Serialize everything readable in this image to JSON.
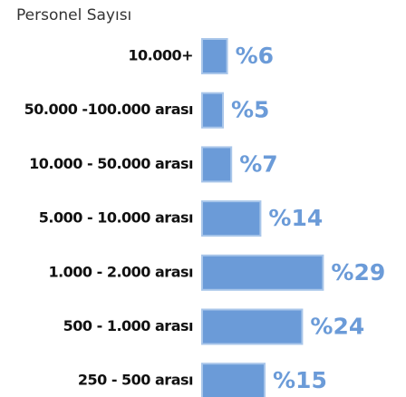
{
  "chart_data": {
    "type": "bar",
    "orientation": "horizontal",
    "title": "Personel Sayısı",
    "categories": [
      "10.000+",
      "50.000 -100.000 arası",
      "10.000 - 50.000 arası",
      "5.000 - 10.000 arası",
      "1.000 - 2.000 arası",
      "500 - 1.000 arası",
      "250 - 500 arası"
    ],
    "values": [
      6,
      5,
      7,
      14,
      29,
      24,
      15
    ],
    "value_labels": [
      "%6",
      "%5",
      "%7",
      "%14",
      "%29",
      "%24",
      "%15"
    ],
    "color": "#6b9bd8"
  }
}
